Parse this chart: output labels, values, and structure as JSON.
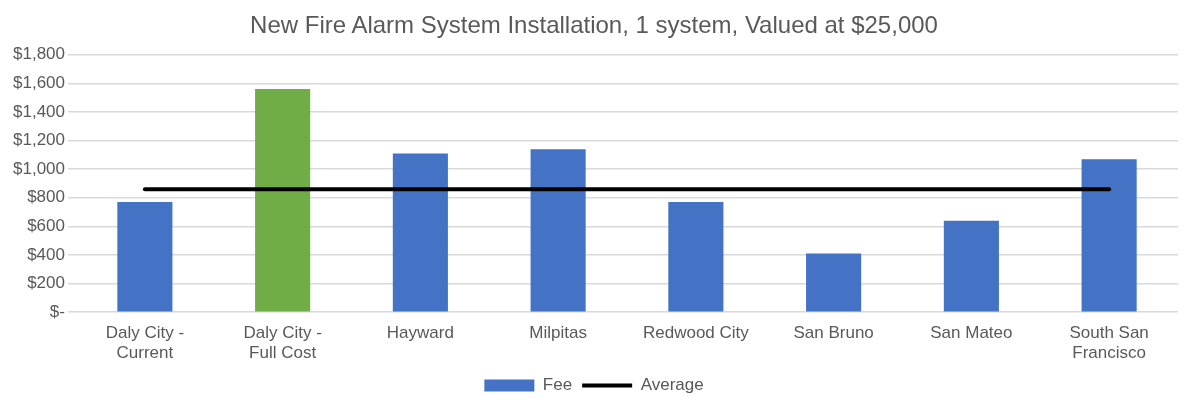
{
  "chart_data": {
    "type": "bar",
    "title": "New Fire Alarm System Installation, 1 system, Valued at $25,000",
    "categories": [
      "Daly City - Current",
      "Daly City - Full Cost",
      "Hayward",
      "Milpitas",
      "Redwood City",
      "San Bruno",
      "San Mateo",
      "South San Francisco"
    ],
    "series": [
      {
        "name": "Fee",
        "color": "#4472c4",
        "colors": [
          "#4472c4",
          "#70ad47",
          "#4472c4",
          "#4472c4",
          "#4472c4",
          "#4472c4",
          "#4472c4",
          "#4472c4"
        ],
        "values": [
          770,
          1560,
          1110,
          1140,
          770,
          410,
          640,
          1070
        ]
      },
      {
        "name": "Average",
        "type": "line",
        "color": "#000000",
        "values": [
          860,
          860,
          860,
          860,
          860,
          860,
          860,
          860
        ]
      }
    ],
    "ylim": [
      0,
      1800
    ],
    "yticks": [
      {
        "value": 0,
        "label": "$-"
      },
      {
        "value": 200,
        "label": "$200"
      },
      {
        "value": 400,
        "label": "$400"
      },
      {
        "value": 600,
        "label": "$600"
      },
      {
        "value": 800,
        "label": "$800"
      },
      {
        "value": 1000,
        "label": "$1,000"
      },
      {
        "value": 1200,
        "label": "$1,200"
      },
      {
        "value": 1400,
        "label": "$1,400"
      },
      {
        "value": 1600,
        "label": "$1,600"
      },
      {
        "value": 1800,
        "label": "$1,800"
      }
    ],
    "grid": "y",
    "legend": "bottom",
    "marker": "none",
    "line_style": "solid"
  }
}
